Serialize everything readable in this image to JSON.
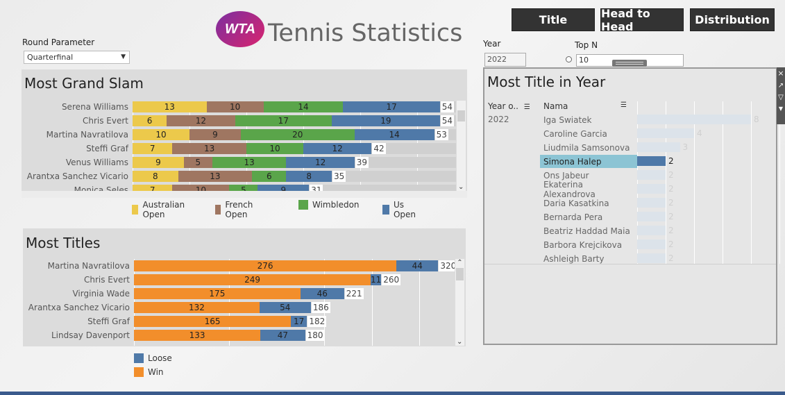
{
  "header": {
    "logo_text": "WTA",
    "title": "Tennis Statistics"
  },
  "nav": {
    "title_label": "Title",
    "h2h_label": "Head to Head",
    "distribution_label": "Distribution"
  },
  "controls": {
    "round_label": "Round Parameter",
    "round_value": "Quarterfinal",
    "year_label": "Year",
    "year_value": "2022",
    "topn_label": "Top N",
    "topn_value": "10"
  },
  "grand_slam": {
    "title": "Most Grand Slam",
    "legend": [
      "Australian Open",
      "French Open",
      "Wimbledon",
      "Us Open"
    ],
    "colors": [
      "#ecc94b",
      "#9f7661",
      "#5aa54a",
      "#4f79a8"
    ],
    "rows": [
      {
        "name": "Serena Williams",
        "values": [
          13,
          10,
          14,
          17
        ],
        "total": "54"
      },
      {
        "name": "Chris Evert",
        "values": [
          6,
          12,
          17,
          19
        ],
        "total": "54"
      },
      {
        "name": "Martina Navratilova",
        "values": [
          10,
          9,
          20,
          14
        ],
        "total": "53"
      },
      {
        "name": "Steffi Graf",
        "values": [
          7,
          13,
          10,
          12
        ],
        "total": "42"
      },
      {
        "name": "Venus Williams",
        "values": [
          9,
          5,
          13,
          12
        ],
        "total": "39"
      },
      {
        "name": "Arantxa Sanchez Vicario",
        "values": [
          8,
          13,
          6,
          8
        ],
        "total": "35"
      },
      {
        "name": "Monica Seles",
        "values": [
          7,
          10,
          5,
          9
        ],
        "total": "31"
      }
    ]
  },
  "titles": {
    "title": "Most Titles",
    "legend": [
      "Loose",
      "Win"
    ],
    "colors": [
      "#4f79a8",
      "#f28e2b"
    ],
    "rows": [
      {
        "name": "Martina Navratilova",
        "win": 276,
        "loose": 44,
        "win_label": "276",
        "loose_label": "44",
        "total": "320"
      },
      {
        "name": "Chris Evert",
        "win": 249,
        "loose": 11,
        "win_label": "249",
        "loose_label": "11",
        "total": "260"
      },
      {
        "name": "Virginia Wade",
        "win": 175,
        "loose": 46,
        "win_label": "175",
        "loose_label": "46",
        "total": "221"
      },
      {
        "name": "Arantxa Sanchez Vicario",
        "win": 132,
        "loose": 54,
        "win_label": "132",
        "loose_label": "54",
        "total": "186"
      },
      {
        "name": "Steffi Graf",
        "win": 165,
        "loose": 17,
        "win_label": "165",
        "loose_label": "17",
        "total": "182"
      },
      {
        "name": "Lindsay Davenport",
        "win": 133,
        "loose": 47,
        "win_label": "133",
        "loose_label": "47",
        "total": "180"
      }
    ]
  },
  "year_panel": {
    "title": "Most Title in Year",
    "col_year": "Year o..",
    "col_name": "Nama",
    "year": "2022",
    "rows": [
      {
        "name": "Iga Swiatek",
        "value": 8,
        "label": "8",
        "selected": false
      },
      {
        "name": "Caroline Garcia",
        "value": 4,
        "label": "4",
        "selected": false
      },
      {
        "name": "Liudmila Samsonova",
        "value": 3,
        "label": "3",
        "selected": false
      },
      {
        "name": "Simona Halep",
        "value": 2,
        "label": "2",
        "selected": true
      },
      {
        "name": "Ons Jabeur",
        "value": 2,
        "label": "2",
        "selected": false
      },
      {
        "name": "Ekaterina Alexandrova",
        "value": 2,
        "label": "2",
        "selected": false
      },
      {
        "name": "Daria Kasatkina",
        "value": 2,
        "label": "2",
        "selected": false
      },
      {
        "name": "Bernarda Pera",
        "value": 2,
        "label": "2",
        "selected": false
      },
      {
        "name": "Beatriz Haddad Maia",
        "value": 2,
        "label": "2",
        "selected": false
      },
      {
        "name": "Barbora Krejcikova",
        "value": 2,
        "label": "2",
        "selected": false
      },
      {
        "name": "Ashleigh Barty",
        "value": 2,
        "label": "2",
        "selected": false
      }
    ]
  },
  "chart_data": [
    {
      "type": "bar",
      "title": "Most Grand Slam",
      "categories": [
        "Serena Williams",
        "Chris Evert",
        "Martina Navratilova",
        "Steffi Graf",
        "Venus Williams",
        "Arantxa Sanchez Vicario",
        "Monica Seles"
      ],
      "series": [
        {
          "name": "Australian Open",
          "values": [
            13,
            6,
            10,
            7,
            9,
            8,
            7
          ]
        },
        {
          "name": "French Open",
          "values": [
            10,
            12,
            9,
            13,
            5,
            13,
            10
          ]
        },
        {
          "name": "Wimbledon",
          "values": [
            14,
            17,
            20,
            10,
            13,
            6,
            5
          ]
        },
        {
          "name": "Us Open",
          "values": [
            17,
            19,
            14,
            12,
            12,
            8,
            9
          ]
        }
      ]
    },
    {
      "type": "bar",
      "title": "Most Titles",
      "categories": [
        "Martina Navratilova",
        "Chris Evert",
        "Virginia Wade",
        "Arantxa Sanchez Vicario",
        "Steffi Graf",
        "Lindsay Davenport"
      ],
      "series": [
        {
          "name": "Win",
          "values": [
            276,
            249,
            175,
            132,
            165,
            133
          ]
        },
        {
          "name": "Loose",
          "values": [
            44,
            11,
            46,
            54,
            17,
            47
          ]
        }
      ]
    },
    {
      "type": "bar",
      "title": "Most Title in Year",
      "categories": [
        "Iga Swiatek",
        "Caroline Garcia",
        "Liudmila Samsonova",
        "Simona Halep",
        "Ons Jabeur",
        "Ekaterina Alexandrova",
        "Daria Kasatkina",
        "Bernarda Pera",
        "Beatriz Haddad Maia",
        "Barbora Krejcikova",
        "Ashleigh Barty"
      ],
      "values": [
        8,
        4,
        3,
        2,
        2,
        2,
        2,
        2,
        2,
        2,
        2
      ]
    }
  ]
}
